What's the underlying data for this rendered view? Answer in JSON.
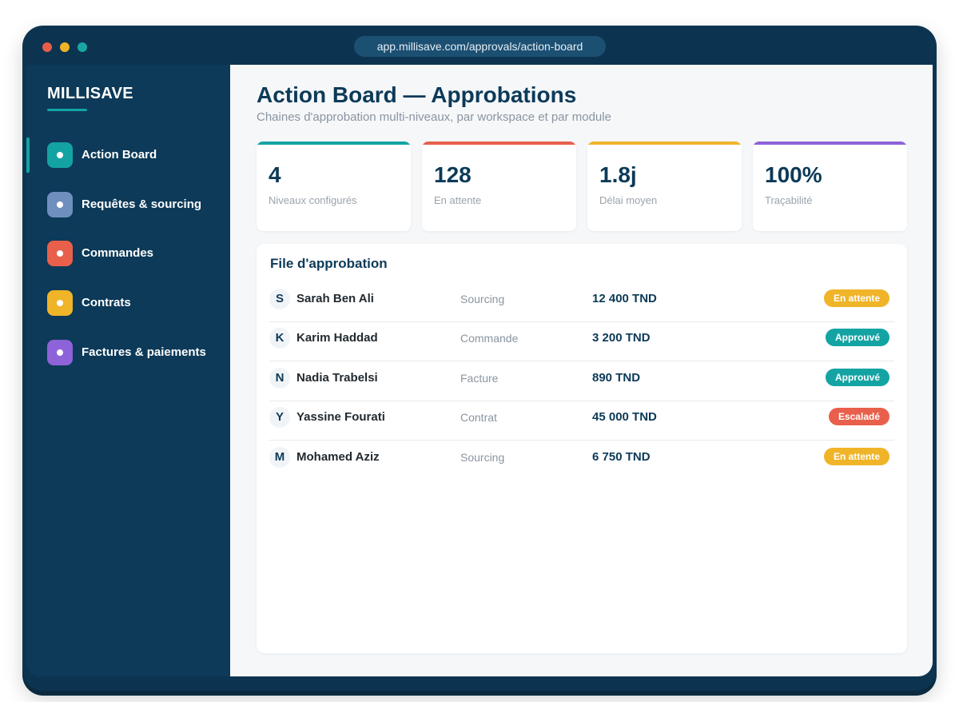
{
  "browser": {
    "url": "app.millisave.com/approvals/action-board"
  },
  "sidebar": {
    "brand": "MILLISAVE",
    "items": [
      {
        "label": "Action Board",
        "color": "#14a3a3",
        "active": true
      },
      {
        "label": "Requêtes & sourcing",
        "color": "#6f8fbf",
        "active": false
      },
      {
        "label": "Commandes",
        "color": "#e8604c",
        "active": false
      },
      {
        "label": "Contrats",
        "color": "#f0b429",
        "active": false
      },
      {
        "label": "Factures & paiements",
        "color": "#8e62d9",
        "active": false
      }
    ]
  },
  "header": {
    "title": "Action Board — Approbations",
    "subtitle": "Chaines d'approbation multi-niveaux, par workspace et par module"
  },
  "kpis": [
    {
      "value": "4",
      "label": "Niveaux configurés",
      "color": "#14a3a3"
    },
    {
      "value": "128",
      "label": "En attente",
      "color": "#e8604c"
    },
    {
      "value": "1.8j",
      "label": "Délai moyen",
      "color": "#f0b429"
    },
    {
      "value": "100%",
      "label": "Traçabilité",
      "color": "#8e62d9"
    }
  ],
  "queue": {
    "title": "File d'approbation",
    "rows": [
      {
        "initial": "S",
        "name": "Sarah Ben Ali",
        "module": "Sourcing",
        "amount": "12 400 TND",
        "status": "En attente",
        "status_color": "#f0b429"
      },
      {
        "initial": "K",
        "name": "Karim Haddad",
        "module": "Commande",
        "amount": "3 200 TND",
        "status": "Approuvé",
        "status_color": "#14a3a3"
      },
      {
        "initial": "N",
        "name": "Nadia Trabelsi",
        "module": "Facture",
        "amount": "890 TND",
        "status": "Approuvé",
        "status_color": "#14a3a3"
      },
      {
        "initial": "Y",
        "name": "Yassine Fourati",
        "module": "Contrat",
        "amount": "45 000 TND",
        "status": "Escaladé",
        "status_color": "#e8604c"
      },
      {
        "initial": "M",
        "name": "Mohamed Aziz",
        "module": "Sourcing",
        "amount": "6 750 TND",
        "status": "En attente",
        "status_color": "#f0b429"
      }
    ]
  }
}
